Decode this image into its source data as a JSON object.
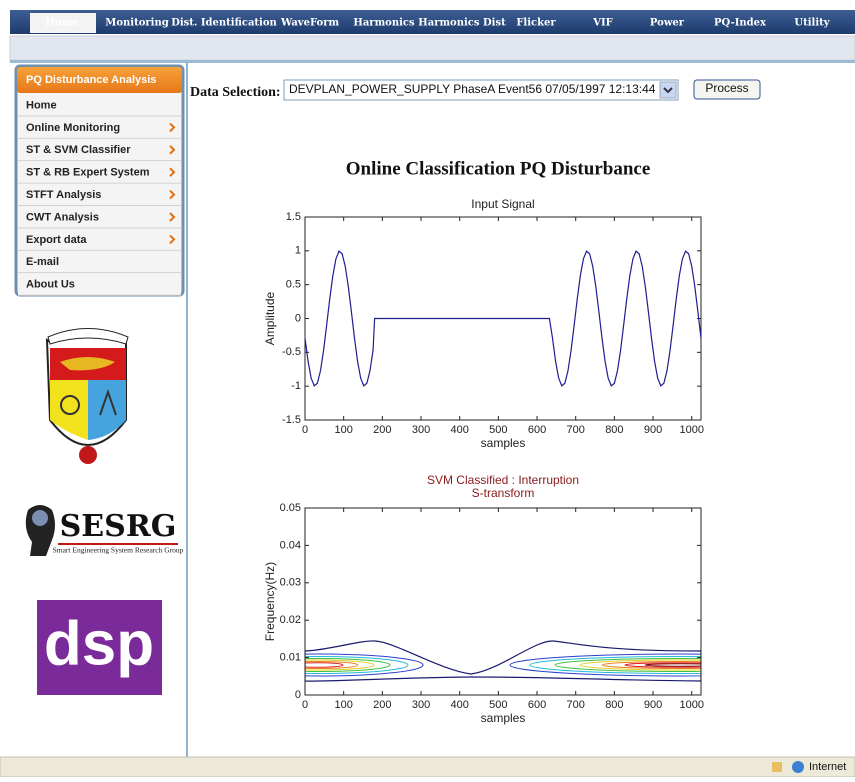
{
  "nav": {
    "tabs": [
      "Home",
      "Monitoring",
      "Dist. Identification",
      "WaveForm",
      "Harmonics",
      "Harmonics Dist",
      "Flicker",
      "VIF",
      "Power",
      "PQ-Index",
      "Utility"
    ]
  },
  "sidebar": {
    "header": "PQ Disturbance Analysis",
    "items": [
      "Home",
      "Online Monitoring",
      "ST & SVM Classifier",
      "ST & RB Expert System",
      "STFT  Analysis",
      "CWT Analysis",
      "Export data",
      "E-mail",
      "About Us"
    ]
  },
  "logos": {
    "sesrg": "SESRG",
    "sesrg_sub": "Smart Engineering System Research Group",
    "dsp": "dsp"
  },
  "form": {
    "label": "Data Selection:",
    "selected": "DEVPLAN_POWER_SUPPLY PhaseA Event56 07/05/1997 12:13:44",
    "button": "Process"
  },
  "heading": "Online Classification PQ Disturbance",
  "chart_data": [
    {
      "type": "line",
      "title": "Input Signal",
      "xlabel": "samples",
      "ylabel": "Amplitude",
      "x": [
        0,
        8,
        16,
        24,
        32,
        40,
        48,
        56,
        64,
        72,
        80,
        88,
        96,
        104,
        112,
        120,
        128,
        136,
        144,
        152,
        160,
        168,
        176,
        180,
        632,
        640,
        648,
        656,
        664,
        672,
        680,
        688,
        696,
        704,
        712,
        720,
        728,
        736,
        744,
        752,
        760,
        768,
        776,
        784,
        792,
        800,
        808,
        816,
        824,
        832,
        840,
        848,
        856,
        864,
        872,
        880,
        888,
        896,
        904,
        912,
        920,
        928,
        936,
        944,
        952,
        960,
        968,
        976,
        984,
        992,
        1000,
        1008,
        1016,
        1024
      ],
      "series": [
        {
          "color": "#1f1f8f",
          "values": [
            -0.29,
            -0.634,
            -0.882,
            -0.995,
            -0.957,
            -0.773,
            -0.471,
            -0.098,
            0.29,
            0.634,
            0.882,
            0.995,
            0.957,
            0.773,
            0.471,
            0.098,
            -0.29,
            -0.634,
            -0.882,
            -0.995,
            -0.957,
            -0.773,
            -0.471,
            0,
            0,
            -0.29,
            -0.634,
            -0.882,
            -0.995,
            -0.957,
            -0.773,
            -0.471,
            -0.098,
            0.29,
            0.634,
            0.882,
            0.995,
            0.957,
            0.773,
            0.471,
            0.098,
            -0.29,
            -0.634,
            -0.882,
            -0.995,
            -0.957,
            -0.773,
            -0.471,
            -0.098,
            0.29,
            0.634,
            0.882,
            0.995,
            0.957,
            0.773,
            0.471,
            0.098,
            -0.29,
            -0.634,
            -0.882,
            -0.995,
            -0.957,
            -0.773,
            -0.471,
            -0.098,
            0.29,
            0.634,
            0.882,
            0.995,
            0.957,
            0.773,
            0.471,
            0.098,
            -0.29
          ]
        }
      ],
      "xlim": [
        0,
        1024
      ],
      "xticks": [
        0,
        100,
        200,
        300,
        400,
        500,
        600,
        700,
        800,
        900,
        1000
      ],
      "ylim": [
        -1.5,
        1.5
      ],
      "yticks": [
        -1.5,
        -1,
        -0.5,
        0,
        0.5,
        1,
        1.5
      ]
    },
    {
      "type": "contour",
      "title": "SVM Classified : Interruption",
      "subtitle": "S-transform",
      "title_color": "#8b1a1a",
      "xlabel": "samples",
      "ylabel": "Frequency(Hz)",
      "xlim": [
        0,
        1024
      ],
      "xticks": [
        0,
        100,
        200,
        300,
        400,
        500,
        600,
        700,
        800,
        900,
        1000
      ],
      "ylim": [
        0,
        0.05
      ],
      "yticks": [
        0,
        0.01,
        0.02,
        0.03,
        0.04,
        0.05
      ]
    }
  ],
  "status": {
    "zone": "Internet"
  }
}
